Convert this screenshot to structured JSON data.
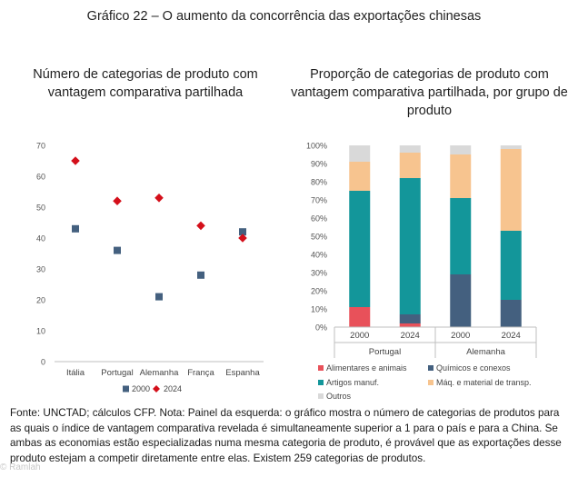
{
  "figure_title": "Gráfico 22 – O aumento da concorrência das exportações chinesas",
  "watermark": "© Ramlah",
  "footnote": "Fonte: UNCTAD; cálculos CFP. Nota: Painel da esquerda: o gráfico mostra o número de categorias de produtos para as quais o índice de vantagem comparativa revelada é simultaneamente superior a 1 para o país e para a China. Se ambas as economias estão especializadas numa mesma categoria de produto, é provável que as exportações desse produto estejam a competir diretamente entre elas. Existem 259 categorias de produtos.",
  "colors": {
    "series_2000": "#44607f",
    "series_2024": "#d40f1a",
    "alimentares": "#e8515a",
    "quimicos": "#44607f",
    "artigos": "#13969a",
    "maquinas": "#f7c48f",
    "outros": "#d9d9d9"
  },
  "chart_data": [
    {
      "type": "scatter",
      "title": "Número de categorias de produto com vantagem comparativa partilhada",
      "categories": [
        "Itália",
        "Portugal",
        "Alemanha",
        "França",
        "Espanha"
      ],
      "series": [
        {
          "name": "2000",
          "marker": "square",
          "values": [
            43,
            36,
            21,
            28,
            42
          ]
        },
        {
          "name": "2024",
          "marker": "diamond",
          "values": [
            65,
            52,
            53,
            44,
            40
          ]
        }
      ],
      "ylim": [
        0,
        70
      ],
      "yticks": [
        0,
        10,
        20,
        30,
        40,
        50,
        60,
        70
      ],
      "grid": false,
      "legend": "bottom"
    },
    {
      "type": "bar",
      "stacked": true,
      "title": "Proporção de categorias de produto com vantagem comparativa partilhada, por grupo de produto",
      "groups": [
        "Portugal",
        "Alemanha"
      ],
      "categories": [
        "2000",
        "2024",
        "2000",
        "2024"
      ],
      "series": [
        {
          "name": "Alimentares e animais",
          "values": [
            11,
            2,
            0,
            0
          ]
        },
        {
          "name": "Químicos e conexos",
          "values": [
            0,
            5,
            29,
            15
          ]
        },
        {
          "name": "Artigos manuf.",
          "values": [
            64,
            75,
            42,
            38
          ]
        },
        {
          "name": "Máq. e material de transp.",
          "values": [
            16,
            14,
            24,
            45
          ]
        },
        {
          "name": "Outros",
          "values": [
            9,
            4,
            5,
            2
          ]
        }
      ],
      "ylim": [
        0,
        100
      ],
      "yticks": [
        "0%",
        "10%",
        "20%",
        "30%",
        "40%",
        "50%",
        "60%",
        "70%",
        "80%",
        "90%",
        "100%"
      ],
      "grid": false,
      "legend": "bottom"
    }
  ]
}
